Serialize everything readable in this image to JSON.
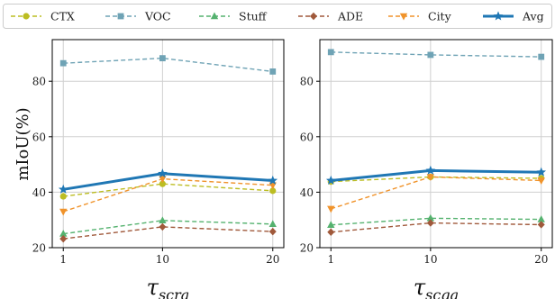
{
  "chart_data": {
    "type": "line",
    "legend": {
      "placement": "top",
      "entries": [
        {
          "name": "CTX",
          "color": "#bcbd22",
          "marker": "circle",
          "dashed": true
        },
        {
          "name": "VOC",
          "color": "#6fa3b5",
          "marker": "square",
          "dashed": true
        },
        {
          "name": "Stuff",
          "color": "#55b26f",
          "marker": "triangle-up",
          "dashed": true
        },
        {
          "name": "ADE",
          "color": "#a0593b",
          "marker": "diamond",
          "dashed": true
        },
        {
          "name": "City",
          "color": "#f0932b",
          "marker": "triangle-down",
          "dashed": true
        },
        {
          "name": "Avg",
          "color": "#1f77b4",
          "marker": "star",
          "dashed": false
        }
      ]
    },
    "ylabel": "mIoU(%)",
    "ylim": [
      20,
      95
    ],
    "yticks": [
      20,
      40,
      60,
      80
    ],
    "grid": true,
    "panels": [
      {
        "xlabel": {
          "main": "τ",
          "sub": "scra"
        },
        "x": [
          1,
          10,
          20
        ],
        "xlim": [
          0,
          21
        ],
        "xticks": [
          1,
          10,
          20
        ],
        "series": [
          {
            "name": "CTX",
            "values": [
              38.5,
              43.0,
              40.5
            ]
          },
          {
            "name": "VOC",
            "values": [
              86.5,
              88.3,
              83.5
            ]
          },
          {
            "name": "Stuff",
            "values": [
              25.0,
              29.8,
              28.5
            ]
          },
          {
            "name": "ADE",
            "values": [
              23.2,
              27.5,
              25.8
            ]
          },
          {
            "name": "City",
            "values": [
              33.0,
              44.8,
              42.5
            ]
          },
          {
            "name": "Avg",
            "values": [
              41.0,
              46.7,
              44.2
            ]
          }
        ]
      },
      {
        "xlabel": {
          "main": "τ",
          "sub": "scga"
        },
        "x": [
          1,
          10,
          20
        ],
        "xlim": [
          0,
          21
        ],
        "xticks": [
          1,
          10,
          20
        ],
        "series": [
          {
            "name": "CTX",
            "values": [
              43.8,
              45.5,
              45.0
            ]
          },
          {
            "name": "VOC",
            "values": [
              90.5,
              89.5,
              88.8
            ]
          },
          {
            "name": "Stuff",
            "values": [
              28.2,
              30.6,
              30.2
            ]
          },
          {
            "name": "ADE",
            "values": [
              25.6,
              28.9,
              28.3
            ]
          },
          {
            "name": "City",
            "values": [
              34.0,
              45.5,
              44.2
            ]
          },
          {
            "name": "Avg",
            "values": [
              44.2,
              47.8,
              47.2
            ]
          }
        ]
      }
    ]
  }
}
